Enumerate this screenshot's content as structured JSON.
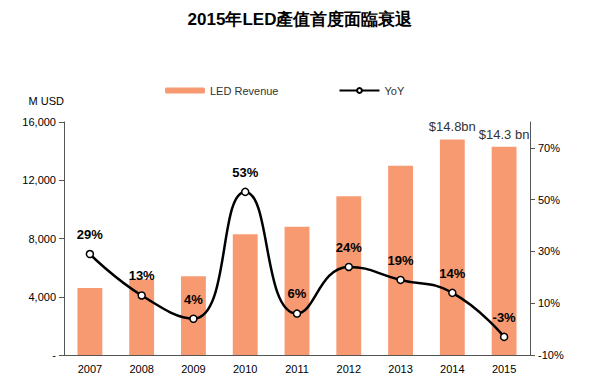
{
  "chart_data": {
    "type": "bar",
    "title": "2015年LED產值首度面臨衰退",
    "y_label": "M USD",
    "categories": [
      "2007",
      "2008",
      "2009",
      "2010",
      "2011",
      "2012",
      "2013",
      "2014",
      "2015"
    ],
    "series": [
      {
        "name": "LED Revenue",
        "type": "bar",
        "color": "#f79a72",
        "values": [
          4600,
          5200,
          5400,
          8300,
          8800,
          10900,
          13000,
          14800,
          14300
        ]
      },
      {
        "name": "YoY",
        "type": "line",
        "axis": "y2",
        "color": "#000000",
        "marker": "circle",
        "line_style": "solid",
        "data_labels": true,
        "values": [
          29,
          13,
          4,
          53,
          6,
          24,
          19,
          14,
          -3
        ],
        "value_labels": [
          "29%",
          "13%",
          "4%",
          "53%",
          "6%",
          "24%",
          "19%",
          "14%",
          "-3%"
        ]
      }
    ],
    "annotations": [
      {
        "x": "2014",
        "text": "$14.8bn"
      },
      {
        "x": "2015",
        "text": "$14.3 bn"
      }
    ],
    "ylim": [
      0,
      16000
    ],
    "yticks": [
      {
        "value": 0,
        "label": "-"
      },
      {
        "value": 4000,
        "label": "4,000"
      },
      {
        "value": 8000,
        "label": "8,000"
      },
      {
        "value": 12000,
        "label": "12,000"
      },
      {
        "value": 16000,
        "label": "16,000"
      }
    ],
    "y2lim": [
      -10,
      80
    ],
    "y2ticks": [
      {
        "value": -10,
        "label": "-10%"
      },
      {
        "value": 10,
        "label": "10%"
      },
      {
        "value": 30,
        "label": "30%"
      },
      {
        "value": 50,
        "label": "50%"
      },
      {
        "value": 70,
        "label": "70%"
      }
    ],
    "grid": false,
    "legend": "top"
  }
}
